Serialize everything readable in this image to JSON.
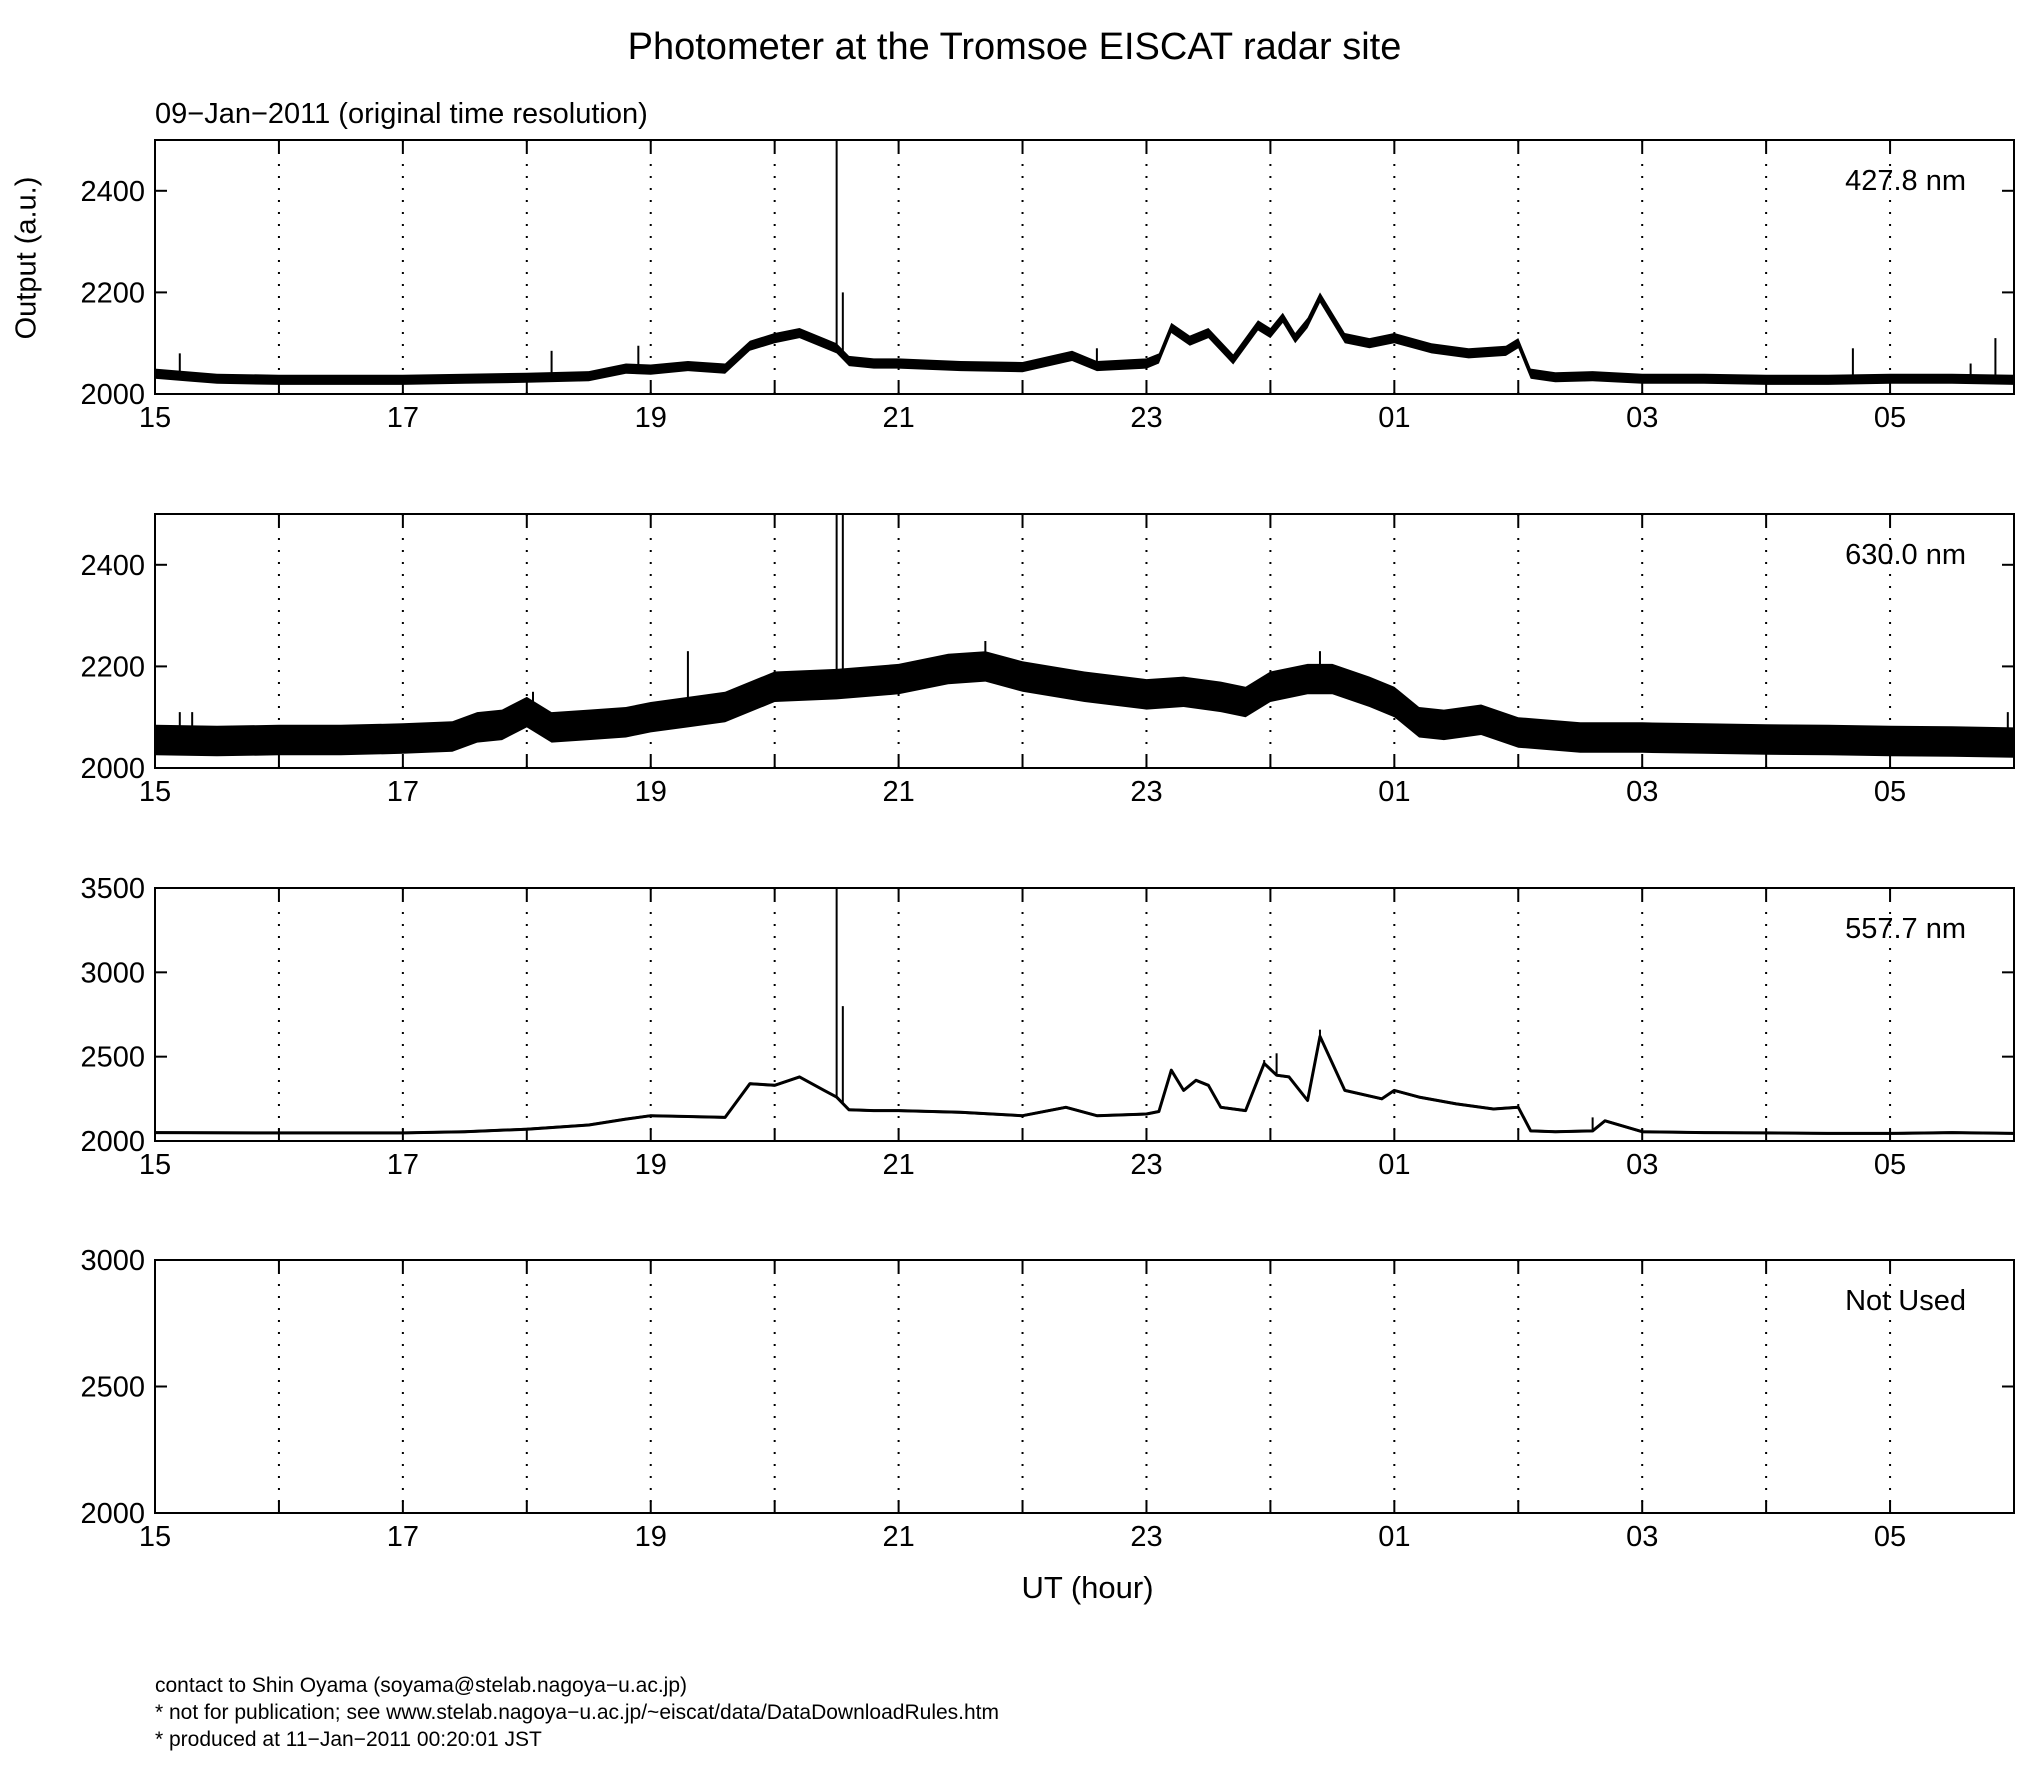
{
  "chart_data": {
    "type": "line",
    "title": "Photometer at the Tromsoe EISCAT radar site",
    "subtitle": "09−Jan−2011 (original time resolution)",
    "ylabel": "Output (a.u.)",
    "xlabel": "UT (hour)",
    "x_unit": "UT hour",
    "xlim": [
      15,
      30
    ],
    "x_tick_labels": [
      "15",
      "17",
      "19",
      "21",
      "23",
      "01",
      "03",
      "05"
    ],
    "grid": "dotted vertical lines at each hour",
    "panels": [
      {
        "label": "427.8 nm",
        "ylim": [
          2000,
          2500
        ],
        "yticks": [
          "2000",
          "2200",
          "2400"
        ],
        "band": 10,
        "x": [
          15.0,
          15.5,
          16.0,
          16.5,
          17.0,
          17.5,
          18.0,
          18.5,
          18.8,
          19.0,
          19.3,
          19.6,
          19.8,
          20.0,
          20.2,
          20.4,
          20.5,
          20.6,
          20.8,
          21.0,
          21.5,
          22.0,
          22.4,
          22.6,
          23.0,
          23.1,
          23.2,
          23.35,
          23.5,
          23.7,
          23.9,
          24.0,
          24.1,
          24.2,
          24.3,
          24.4,
          24.6,
          24.8,
          25.0,
          25.3,
          25.6,
          25.9,
          26.0,
          26.1,
          26.3,
          26.6,
          27.0,
          27.5,
          28.0,
          28.5,
          29.0,
          29.5,
          30.0
        ],
        "y": [
          2040,
          2030,
          2028,
          2028,
          2028,
          2030,
          2032,
          2035,
          2050,
          2048,
          2055,
          2050,
          2095,
          2110,
          2120,
          2100,
          2090,
          2065,
          2060,
          2060,
          2055,
          2053,
          2075,
          2055,
          2060,
          2070,
          2130,
          2105,
          2120,
          2068,
          2135,
          2120,
          2150,
          2110,
          2140,
          2190,
          2110,
          2100,
          2110,
          2090,
          2080,
          2085,
          2100,
          2040,
          2033,
          2035,
          2030,
          2030,
          2028,
          2028,
          2030,
          2030,
          2028
        ],
        "spikes": [
          [
            15.2,
            2080
          ],
          [
            18.2,
            2085
          ],
          [
            18.9,
            2095
          ],
          [
            20.5,
            2500
          ],
          [
            20.55,
            2200
          ],
          [
            22.6,
            2090
          ],
          [
            28.7,
            2090
          ],
          [
            29.65,
            2060
          ],
          [
            29.85,
            2110
          ]
        ]
      },
      {
        "label": "630.0 nm",
        "ylim": [
          2000,
          2500
        ],
        "yticks": [
          "2000",
          "2200",
          "2400"
        ],
        "band": 30,
        "x": [
          15.0,
          15.5,
          16.0,
          16.5,
          17.0,
          17.4,
          17.6,
          17.8,
          18.0,
          18.2,
          18.5,
          18.8,
          19.0,
          19.3,
          19.6,
          20.0,
          20.5,
          21.0,
          21.4,
          21.7,
          22.0,
          22.5,
          23.0,
          23.3,
          23.6,
          23.8,
          24.0,
          24.3,
          24.5,
          24.8,
          25.0,
          25.2,
          25.4,
          25.7,
          26.0,
          26.5,
          27.0,
          27.5,
          28.0,
          28.5,
          29.0,
          29.5,
          30.0
        ],
        "y": [
          2055,
          2053,
          2055,
          2055,
          2058,
          2062,
          2080,
          2085,
          2110,
          2080,
          2085,
          2090,
          2100,
          2110,
          2120,
          2160,
          2165,
          2175,
          2195,
          2200,
          2180,
          2160,
          2145,
          2150,
          2140,
          2130,
          2160,
          2175,
          2175,
          2150,
          2130,
          2090,
          2085,
          2095,
          2070,
          2060,
          2060,
          2058,
          2056,
          2055,
          2053,
          2052,
          2050
        ],
        "spikes": [
          [
            15.2,
            2110
          ],
          [
            15.3,
            2110
          ],
          [
            18.05,
            2150
          ],
          [
            19.3,
            2230
          ],
          [
            20.5,
            2500
          ],
          [
            20.55,
            2500
          ],
          [
            21.7,
            2250
          ],
          [
            24.4,
            2230
          ],
          [
            29.95,
            2110
          ]
        ]
      },
      {
        "label": "557.7 nm",
        "ylim": [
          2000,
          3500
        ],
        "yticks": [
          "2000",
          "2500",
          "3000",
          "3500"
        ],
        "band": 8,
        "x": [
          15.0,
          16.0,
          17.0,
          17.5,
          18.0,
          18.5,
          18.8,
          19.0,
          19.3,
          19.6,
          19.8,
          20.0,
          20.2,
          20.4,
          20.5,
          20.6,
          20.8,
          21.0,
          21.5,
          22.0,
          22.35,
          22.6,
          23.0,
          23.1,
          23.2,
          23.3,
          23.4,
          23.5,
          23.6,
          23.8,
          23.95,
          24.05,
          24.15,
          24.3,
          24.4,
          24.6,
          24.9,
          25.0,
          25.2,
          25.5,
          25.8,
          26.0,
          26.1,
          26.3,
          26.6,
          26.7,
          27.0,
          27.5,
          28.0,
          28.5,
          29.0,
          29.5,
          30.0
        ],
        "y": [
          2050,
          2048,
          2048,
          2055,
          2070,
          2095,
          2130,
          2150,
          2145,
          2140,
          2340,
          2330,
          2380,
          2300,
          2260,
          2185,
          2180,
          2180,
          2170,
          2150,
          2200,
          2150,
          2160,
          2175,
          2420,
          2300,
          2360,
          2330,
          2200,
          2180,
          2460,
          2390,
          2380,
          2240,
          2620,
          2300,
          2250,
          2300,
          2260,
          2220,
          2190,
          2200,
          2060,
          2055,
          2060,
          2120,
          2055,
          2050,
          2048,
          2045,
          2045,
          2050,
          2045
        ],
        "spikes": [
          [
            20.5,
            3500
          ],
          [
            20.55,
            2800
          ],
          [
            23.95,
            2480
          ],
          [
            24.05,
            2520
          ],
          [
            24.4,
            2660
          ],
          [
            26.6,
            2140
          ]
        ]
      },
      {
        "label": "Not Used",
        "ylim": [
          2000,
          3000
        ],
        "yticks": [
          "2000",
          "2500",
          "3000"
        ],
        "band": 0,
        "x": [],
        "y": [],
        "spikes": []
      }
    ]
  },
  "footer": {
    "line1": "contact to Shin Oyama (soyama@stelab.nagoya−u.ac.jp)",
    "line2": "* not for publication; see www.stelab.nagoya−u.ac.jp/~eiscat/data/DataDownloadRules.htm",
    "line3": "* produced at 11−Jan−2011 00:20:01 JST"
  }
}
